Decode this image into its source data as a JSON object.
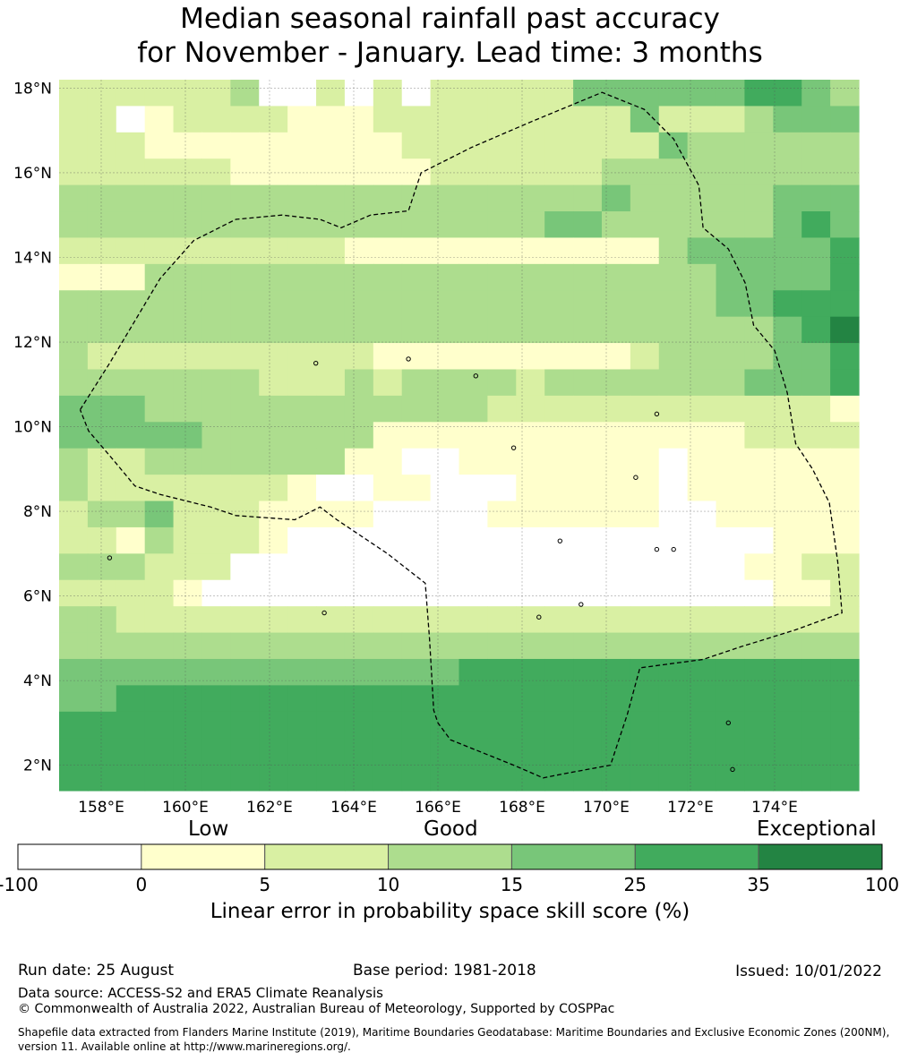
{
  "title_line1": "Median seasonal rainfall past accuracy",
  "title_line2": "for November - January. Lead time: 3 months",
  "map": {
    "lon_ticks": [
      "158°E",
      "160°E",
      "162°E",
      "164°E",
      "166°E",
      "168°E",
      "170°E",
      "172°E",
      "174°E"
    ],
    "lat_ticks": [
      "18°N",
      "16°N",
      "14°N",
      "12°N",
      "10°N",
      "8°N",
      "6°N",
      "4°N",
      "2°N"
    ],
    "lon_values": [
      158,
      160,
      162,
      164,
      166,
      168,
      170,
      172,
      174
    ],
    "lat_values": [
      18,
      16,
      14,
      12,
      10,
      8,
      6,
      4,
      2
    ],
    "extent": {
      "lon_min": 157.0,
      "lon_max": 176.0,
      "lat_min": 1.4,
      "lat_max": 18.2
    },
    "cell_deg": 0.8333,
    "grid_rows_codes": [
      "2222223002020222224444445543",
      "2201222211122222222242223444",
      "2221111111112222222224333333",
      "2222221111111222222333333333",
      "3333333333333333333433333444",
      "3333333333333333344333333454",
      "2222222222111111111113444445",
      "1113333333333333333333344445",
      "3333333333333333333333344555",
      "3333333333333333333333333456",
      "3222222222211111111123333445",
      "3333333222323333233333334445",
      "4443333333333332222222222221",
      "4444433333311111111111112222",
      "3223333333110011111110111111",
      "3222222210011000111110111111",
      "2334222111100001111110011111",
      "2213222100000000000000000111",
      "3332220000000000000000001122",
      "2222100000000000000000000112",
      "3322222222222222222222222222",
      "3333333333333333333333333333",
      "4444444444444455555555555555",
      "4455555555555555555555555555",
      "5555555555555555555555555555",
      "5555555555555555555555555555",
      "5555555555555555555555555555"
    ],
    "color_key": {
      "0": "#ffffff",
      "1": "#ffffcc",
      "2": "#d9f0a3",
      "3": "#addd8e",
      "4": "#78c679",
      "5": "#41ab5d",
      "6": "#238443"
    },
    "boundary_lonlat": [
      [
        157.5,
        10.4
      ],
      [
        158.2,
        11.5
      ],
      [
        158.8,
        12.5
      ],
      [
        159.4,
        13.5
      ],
      [
        160.2,
        14.4
      ],
      [
        161.2,
        14.9
      ],
      [
        162.3,
        15.0
      ],
      [
        163.2,
        14.9
      ],
      [
        163.7,
        14.7
      ],
      [
        164.4,
        15.0
      ],
      [
        165.3,
        15.1
      ],
      [
        165.6,
        16.0
      ],
      [
        166.8,
        16.6
      ],
      [
        168.2,
        17.2
      ],
      [
        169.9,
        17.9
      ],
      [
        170.9,
        17.5
      ],
      [
        171.6,
        16.8
      ],
      [
        172.2,
        15.7
      ],
      [
        172.3,
        14.7
      ],
      [
        172.9,
        14.2
      ],
      [
        173.3,
        13.4
      ],
      [
        173.5,
        12.4
      ],
      [
        174.0,
        11.8
      ],
      [
        174.3,
        10.8
      ],
      [
        174.5,
        9.6
      ],
      [
        174.9,
        9.0
      ],
      [
        175.3,
        8.2
      ],
      [
        175.5,
        6.8
      ],
      [
        175.6,
        5.6
      ],
      [
        174.5,
        5.2
      ],
      [
        173.2,
        4.8
      ],
      [
        172.3,
        4.5
      ],
      [
        170.8,
        4.3
      ],
      [
        170.5,
        3.2
      ],
      [
        170.1,
        2.0
      ],
      [
        169.0,
        1.8
      ],
      [
        168.5,
        1.7
      ],
      [
        167.8,
        2.0
      ],
      [
        166.3,
        2.6
      ],
      [
        166.0,
        3.0
      ],
      [
        165.9,
        3.3
      ],
      [
        165.8,
        5.0
      ],
      [
        165.7,
        6.3
      ],
      [
        164.8,
        7.0
      ],
      [
        163.6,
        7.8
      ],
      [
        163.2,
        8.1
      ],
      [
        162.6,
        7.8
      ],
      [
        161.2,
        7.9
      ],
      [
        160.6,
        8.1
      ],
      [
        159.4,
        8.4
      ],
      [
        158.8,
        8.6
      ],
      [
        158.3,
        9.2
      ],
      [
        157.7,
        9.9
      ],
      [
        157.5,
        10.4
      ]
    ],
    "islands_lonlat": [
      [
        158.2,
        6.9
      ],
      [
        163.3,
        5.6
      ],
      [
        168.9,
        7.3
      ],
      [
        171.2,
        7.1
      ],
      [
        171.6,
        7.1
      ],
      [
        172.9,
        3.0
      ],
      [
        173.0,
        1.9
      ],
      [
        165.3,
        11.6
      ],
      [
        166.9,
        11.2
      ],
      [
        163.1,
        11.5
      ],
      [
        168.4,
        5.5
      ],
      [
        170.7,
        8.8
      ],
      [
        169.4,
        5.8
      ],
      [
        167.8,
        9.5
      ],
      [
        171.2,
        10.3
      ]
    ]
  },
  "colorbar": {
    "category_low": "Low",
    "category_good": "Good",
    "category_exceptional": "Exceptional",
    "ticks": [
      "-100",
      "0",
      "5",
      "10",
      "15",
      "25",
      "35",
      "100"
    ],
    "bins": [
      {
        "from": "-100",
        "to": "0",
        "color": "#ffffff"
      },
      {
        "from": "0",
        "to": "5",
        "color": "#ffffcc"
      },
      {
        "from": "5",
        "to": "10",
        "color": "#d9f0a3"
      },
      {
        "from": "10",
        "to": "15",
        "color": "#addd8e"
      },
      {
        "from": "15",
        "to": "25",
        "color": "#78c679"
      },
      {
        "from": "25",
        "to": "35",
        "color": "#41ab5d"
      },
      {
        "from": "35",
        "to": "100",
        "color": "#238443"
      }
    ],
    "label": "Linear error in probability space skill score (%)"
  },
  "footer": {
    "run_date": "Run date: 25 August",
    "base_period": "Base period: 1981-2018",
    "issued": "Issued: 10/01/2022",
    "data_source": "Data source: ACCESS-S2 and ERA5 Climate Reanalysis",
    "copyright": "© Commonwealth of Australia 2022, Australian Bureau of Meteorology, Supported by COSPPac",
    "shapefile_line1": "Shapefile data extracted from Flanders Marine Institute (2019), Maritime Boundaries Geodatabase: Maritime Boundaries and Exclusive Economic Zones (200NM),",
    "shapefile_line2": "version 11. Available online at http://www.marineregions.org/."
  }
}
